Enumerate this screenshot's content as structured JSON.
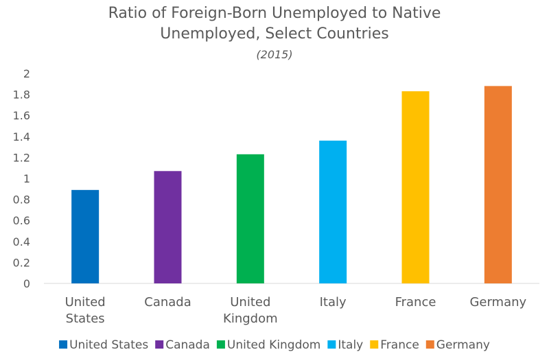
{
  "chart_data": {
    "type": "bar",
    "title": "Ratio of Foreign-Born Unemployed to Native Unemployed, Select Countries",
    "title_lines": [
      "Ratio of Foreign-Born Unemployed to Native",
      "Unemployed, Select Countries"
    ],
    "subtitle": "(2015)",
    "categories": [
      "United States",
      "Canada",
      "United Kingdom",
      "Italy",
      "France",
      "Germany"
    ],
    "category_label_lines": [
      [
        "United",
        "States"
      ],
      [
        "Canada"
      ],
      [
        "United",
        "Kingdom"
      ],
      [
        "Italy"
      ],
      [
        "France"
      ],
      [
        "Germany"
      ]
    ],
    "values": [
      0.89,
      1.07,
      1.23,
      1.36,
      1.83,
      1.88
    ],
    "colors": [
      "#0070c0",
      "#7030a0",
      "#00b050",
      "#00b0f0",
      "#ffc000",
      "#ed7d31"
    ],
    "legend": [
      "United States",
      "Canada",
      "United Kingdom",
      "Italy",
      "France",
      "Germany"
    ],
    "legend_position": "bottom",
    "ylim": [
      0,
      2
    ],
    "yticks": [
      "0",
      "0.2",
      "0.4",
      "0.6",
      "0.8",
      "1",
      "1.2",
      "1.4",
      "1.6",
      "1.8",
      "2"
    ],
    "grid": false,
    "xlabel": "",
    "ylabel": ""
  }
}
